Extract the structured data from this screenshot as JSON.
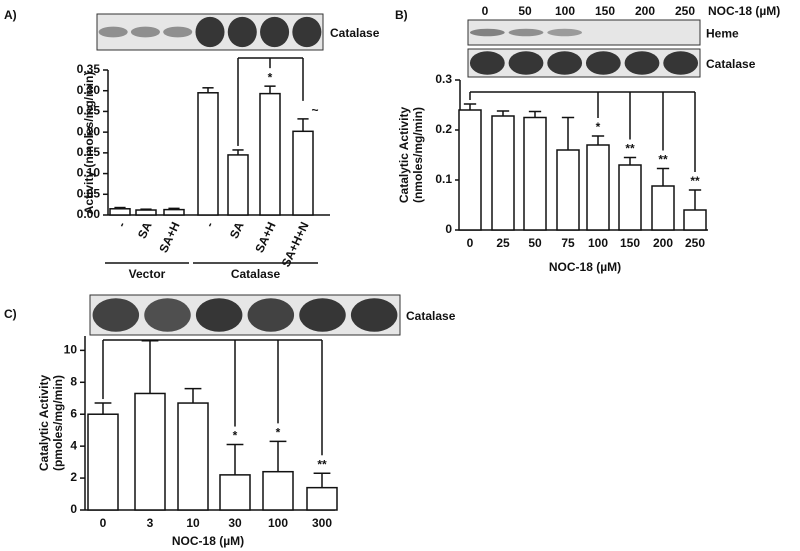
{
  "chart_data": [
    {
      "type": "bar",
      "panel_label": "A)",
      "blot_labels": [
        "Catalase"
      ],
      "y_label": [
        "Activity (nmoles/mg/min)"
      ],
      "categories": [
        "-",
        "SA",
        "SA+H",
        "-",
        "SA",
        "SA+H",
        "SA+H+N"
      ],
      "groups": [
        "Vector",
        "Catalase"
      ],
      "values": [
        0.015,
        0.012,
        0.013,
        0.295,
        0.145,
        0.293,
        0.202
      ],
      "errors": [
        0.003,
        0.002,
        0.003,
        0.012,
        0.012,
        0.018,
        0.03
      ],
      "significance": [
        null,
        null,
        null,
        null,
        null,
        "*",
        "~"
      ],
      "ylim": [
        0,
        0.35
      ],
      "yticks": [
        {
          "value": 0,
          "label": "0.00"
        },
        {
          "value": 0.05,
          "label": "0.05"
        },
        {
          "value": 0.1,
          "label": "0.10"
        },
        {
          "value": 0.15,
          "label": "0.15"
        },
        {
          "value": 0.2,
          "label": "0.20"
        },
        {
          "value": 0.25,
          "label": "0.25"
        },
        {
          "value": 0.3,
          "label": "0.30"
        },
        {
          "value": 0.35,
          "label": "0.35"
        }
      ],
      "color": "#ffffff"
    },
    {
      "type": "bar",
      "panel_label": "B)",
      "blot_labels": [
        "Heme",
        "Catalase"
      ],
      "blot_lanes": [
        "0",
        "50",
        "100",
        "150",
        "200",
        "250"
      ],
      "blot_lanes_title": "NOC-18 (µM)",
      "y_label": [
        "Catalytic Activity",
        "(nmoles/mg/min)"
      ],
      "x_label": "NOC-18 (µM)",
      "categories": [
        "0",
        "25",
        "50",
        "75",
        "100",
        "150",
        "200",
        "250"
      ],
      "values": [
        0.24,
        0.228,
        0.225,
        0.16,
        0.17,
        0.13,
        0.088,
        0.04
      ],
      "errors": [
        0.012,
        0.01,
        0.012,
        0.065,
        0.018,
        0.015,
        0.035,
        0.04
      ],
      "significance": [
        null,
        null,
        null,
        null,
        "*",
        "**",
        "**",
        "**"
      ],
      "ylim": [
        0,
        0.3
      ],
      "yticks": [
        0,
        0.1,
        0.2,
        0.3
      ],
      "color": "#ffffff"
    },
    {
      "type": "bar",
      "panel_label": "C)",
      "blot_labels": [
        "Catalase"
      ],
      "y_label": [
        "Catalytic Activity",
        "(pmoles/mg/min)"
      ],
      "x_label": "NOC-18 (µM)",
      "categories": [
        "0",
        "3",
        "10",
        "30",
        "100",
        "300"
      ],
      "values": [
        6.0,
        7.3,
        6.7,
        2.2,
        2.4,
        1.4
      ],
      "errors": [
        0.7,
        3.3,
        0.9,
        1.9,
        1.9,
        0.9
      ],
      "significance": [
        null,
        null,
        null,
        "*",
        "*",
        "**"
      ],
      "ylim": [
        0,
        10.9
      ],
      "yticks": [
        0,
        2,
        4,
        6,
        8,
        10
      ],
      "color": "#ffffff"
    }
  ]
}
